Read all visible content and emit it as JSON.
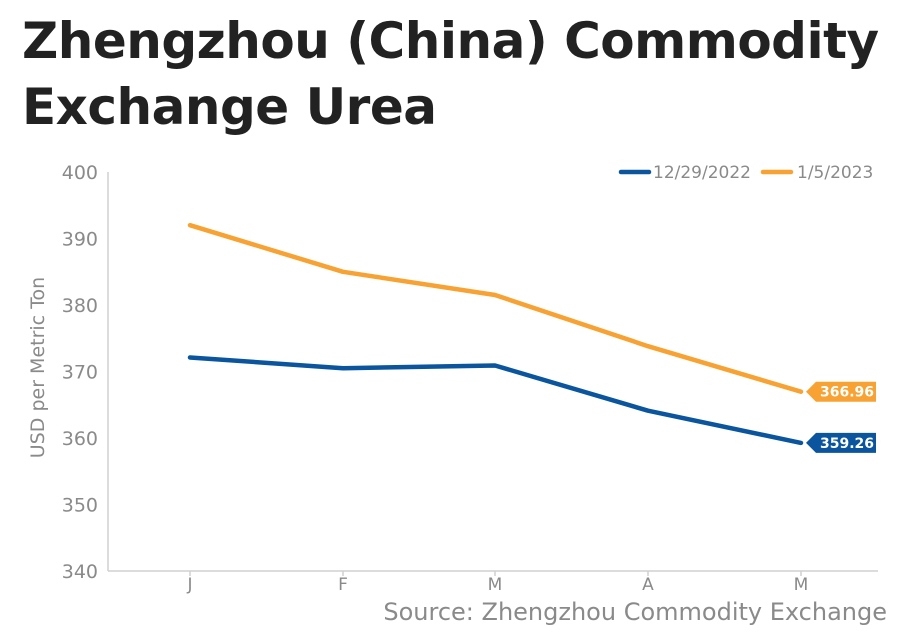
{
  "title": "Zhengzhou (China) Commodity Exchange Urea",
  "source": "Source: Zhengzhou Commodity Exchange",
  "chart_data": {
    "type": "line",
    "title": "Zhengzhou (China) Commodity Exchange Urea",
    "xlabel": "",
    "ylabel": "USD per Metric Ton",
    "categories": [
      "J",
      "F",
      "M",
      "A",
      "M"
    ],
    "ylim": [
      340,
      400
    ],
    "yticks": [
      340,
      350,
      360,
      370,
      380,
      390,
      400
    ],
    "grid": false,
    "legend": "top-right",
    "series": [
      {
        "name": "12/29/2022",
        "color": "#0a559e",
        "values": [
          372.1,
          370.5,
          370.9,
          364.1,
          359.26
        ],
        "end_label": "359.26"
      },
      {
        "name": "1/5/2023",
        "color": "#f7a232",
        "values": [
          392.0,
          385.0,
          381.5,
          373.8,
          366.96
        ],
        "end_label": "366.96"
      }
    ]
  }
}
